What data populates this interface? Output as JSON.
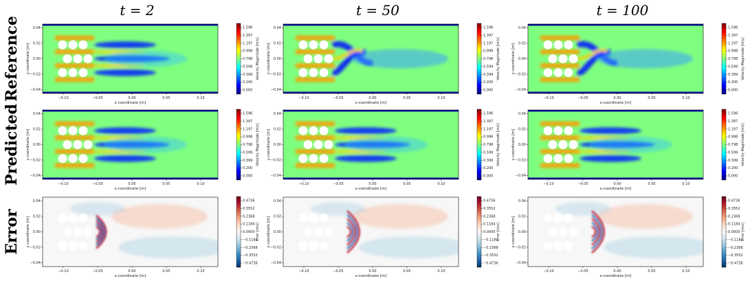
{
  "column_titles": [
    "t = 2",
    "t = 50",
    "t = 100"
  ],
  "row_titles": [
    "Reference",
    "Predicted",
    "Error"
  ],
  "colors": {
    "jet": [
      "#00007f",
      "#0000ff",
      "#007fff",
      "#00ffff",
      "#7fff7f",
      "#ffff00",
      "#ff7f00",
      "#ff0000",
      "#7f0000"
    ],
    "diverging": [
      "#053061",
      "#2166ac",
      "#4393c3",
      "#92c5de",
      "#d1e5f0",
      "#f7f7f7",
      "#fddbc7",
      "#f4a582",
      "#d6604d",
      "#b2182b",
      "#67001f"
    ],
    "background_field": "#7fff7f",
    "obstacle": "#ffffff"
  },
  "chart_data": [
    {
      "type": "heatmap",
      "xlabel": "x-coordinate [m]",
      "ylabel": "y-coordinate [m]",
      "x_ticks": [
        "−0.10",
        "−0.05",
        "0.00",
        "0.05",
        "0.10"
      ],
      "y_ticks": [
        "0.04",
        "0.02",
        "0.00",
        "−0.02",
        "−0.04"
      ],
      "colorbar_label": "Velocity Magnitude [m/s]",
      "colorbar_ticks": [
        "1.596",
        "1.397",
        "1.197",
        "0.998",
        "0.798",
        "0.599",
        "0.399",
        "0.200",
        "0.000"
      ],
      "colormap": "jet",
      "rows": [
        {
          "row": "Reference",
          "panels": [
            {
              "t": 2,
              "wake": "symmetric"
            },
            {
              "t": 50,
              "wake": "oscillating"
            },
            {
              "t": 100,
              "wake": "oscillating"
            }
          ]
        },
        {
          "row": "Predicted",
          "panels": [
            {
              "t": 2,
              "wake": "symmetric"
            },
            {
              "t": 50,
              "wake": "symmetric"
            },
            {
              "t": 100,
              "wake": "symmetric"
            }
          ]
        }
      ]
    },
    {
      "type": "heatmap",
      "xlabel": "x-coordinate [m]",
      "ylabel": "y-coordinate [m]",
      "x_ticks": [
        "−0.10",
        "−0.05",
        "0.00",
        "0.05",
        "0.10"
      ],
      "y_ticks": [
        "0.04",
        "0.02",
        "0.00",
        "−0.02",
        "−0.04"
      ],
      "colorbar_label": "Error [m/s]",
      "colorbar_ticks": [
        "0.4736",
        "0.3552",
        "0.2368",
        "0.1184",
        "0.0000",
        "−0.1184",
        "−0.2368",
        "−0.3552",
        "−0.4736"
      ],
      "colormap": "diverging",
      "rows": [
        {
          "row": "Error",
          "panels": [
            {
              "t": 2
            },
            {
              "t": 50
            },
            {
              "t": 100
            }
          ]
        }
      ]
    }
  ]
}
